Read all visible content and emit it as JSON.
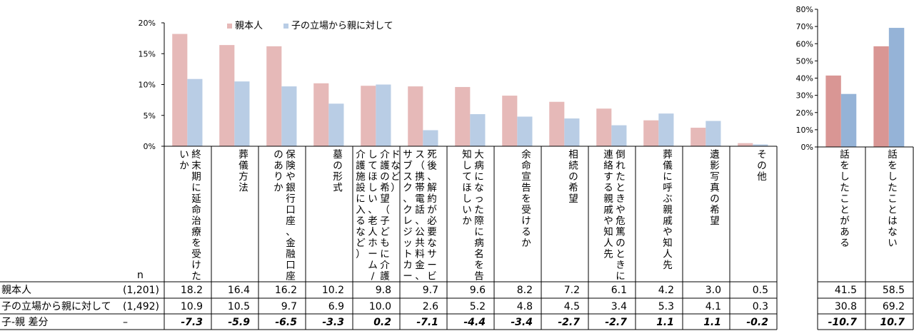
{
  "chart_data": [
    {
      "type": "bar",
      "ylim": [
        0,
        20
      ],
      "yticks": [
        "0%",
        "5%",
        "10%",
        "15%",
        "20%"
      ],
      "grid": false,
      "legend_placement": "top-center",
      "categories": [
        "終末期に延命治療を受けたいか",
        "葬儀方法",
        "保険や銀行口座、金融口座のありか",
        "墓の形式",
        "介護の希望（子どもに介護してほしい、老人ホーム/介護施設に入るなど）",
        "死後、解約が必要なサービス（携帯電話、公共料金、サブスク、クレジットカードなど）",
        "大病になった際に病名を告知してほしいか",
        "余命宣告を受けるか",
        "相続の希望",
        "倒れたときや危篤のときに連絡する親戚や知人先",
        "葬儀に呼ぶ親戚や知人先",
        "遺影写真の希望",
        "その他"
      ],
      "series": [
        {
          "name": "親本人",
          "values": [
            18.2,
            16.4,
            16.2,
            10.2,
            9.8,
            9.7,
            9.6,
            8.2,
            7.2,
            6.1,
            4.2,
            3.0,
            0.5
          ]
        },
        {
          "name": "子の立場から親に対して",
          "values": [
            10.9,
            10.5,
            9.7,
            6.9,
            10.0,
            2.6,
            5.2,
            4.8,
            4.5,
            3.4,
            5.3,
            4.1,
            0.3
          ]
        }
      ]
    },
    {
      "type": "bar",
      "ylim": [
        0,
        80
      ],
      "yticks": [
        "0%",
        "10%",
        "20%",
        "30%",
        "40%",
        "50%",
        "60%",
        "70%",
        "80%"
      ],
      "grid": false,
      "categories": [
        "話をしたことがある",
        "話をしたことはない"
      ],
      "series": [
        {
          "name": "親本人",
          "values": [
            41.5,
            58.5
          ]
        },
        {
          "name": "子の立場から親に対して",
          "values": [
            30.8,
            69.2
          ]
        }
      ]
    }
  ],
  "colors": {
    "parent": "#e6b9b8",
    "child": "#b9cde5",
    "parent_right": "#d99694",
    "child_right": "#95b3d7",
    "line": "#000000"
  },
  "table": {
    "n_label": "n",
    "rows": [
      {
        "label": "親本人",
        "n": "(1,201)",
        "left": [
          "18.2",
          "16.4",
          "16.2",
          "10.2",
          "9.8",
          "9.7",
          "9.6",
          "8.2",
          "7.2",
          "6.1",
          "4.2",
          "3.0",
          "0.5"
        ],
        "right": [
          "41.5",
          "58.5"
        ]
      },
      {
        "label": "子の立場から親に対して",
        "n": "(1,492)",
        "left": [
          "10.9",
          "10.5",
          "9.7",
          "6.9",
          "10.0",
          "2.6",
          "5.2",
          "4.8",
          "4.5",
          "3.4",
          "5.3",
          "4.1",
          "0.3"
        ],
        "right": [
          "30.8",
          "69.2"
        ]
      },
      {
        "label": "子-親 差分",
        "n": "–",
        "left": [
          "-7.3",
          "-5.9",
          "-6.5",
          "-3.3",
          "0.2",
          "-7.1",
          "-4.4",
          "-3.4",
          "-2.7",
          "-2.7",
          "1.1",
          "1.1",
          "-0.2"
        ],
        "right": [
          "-10.7",
          "10.7"
        ],
        "bold": true
      }
    ]
  }
}
